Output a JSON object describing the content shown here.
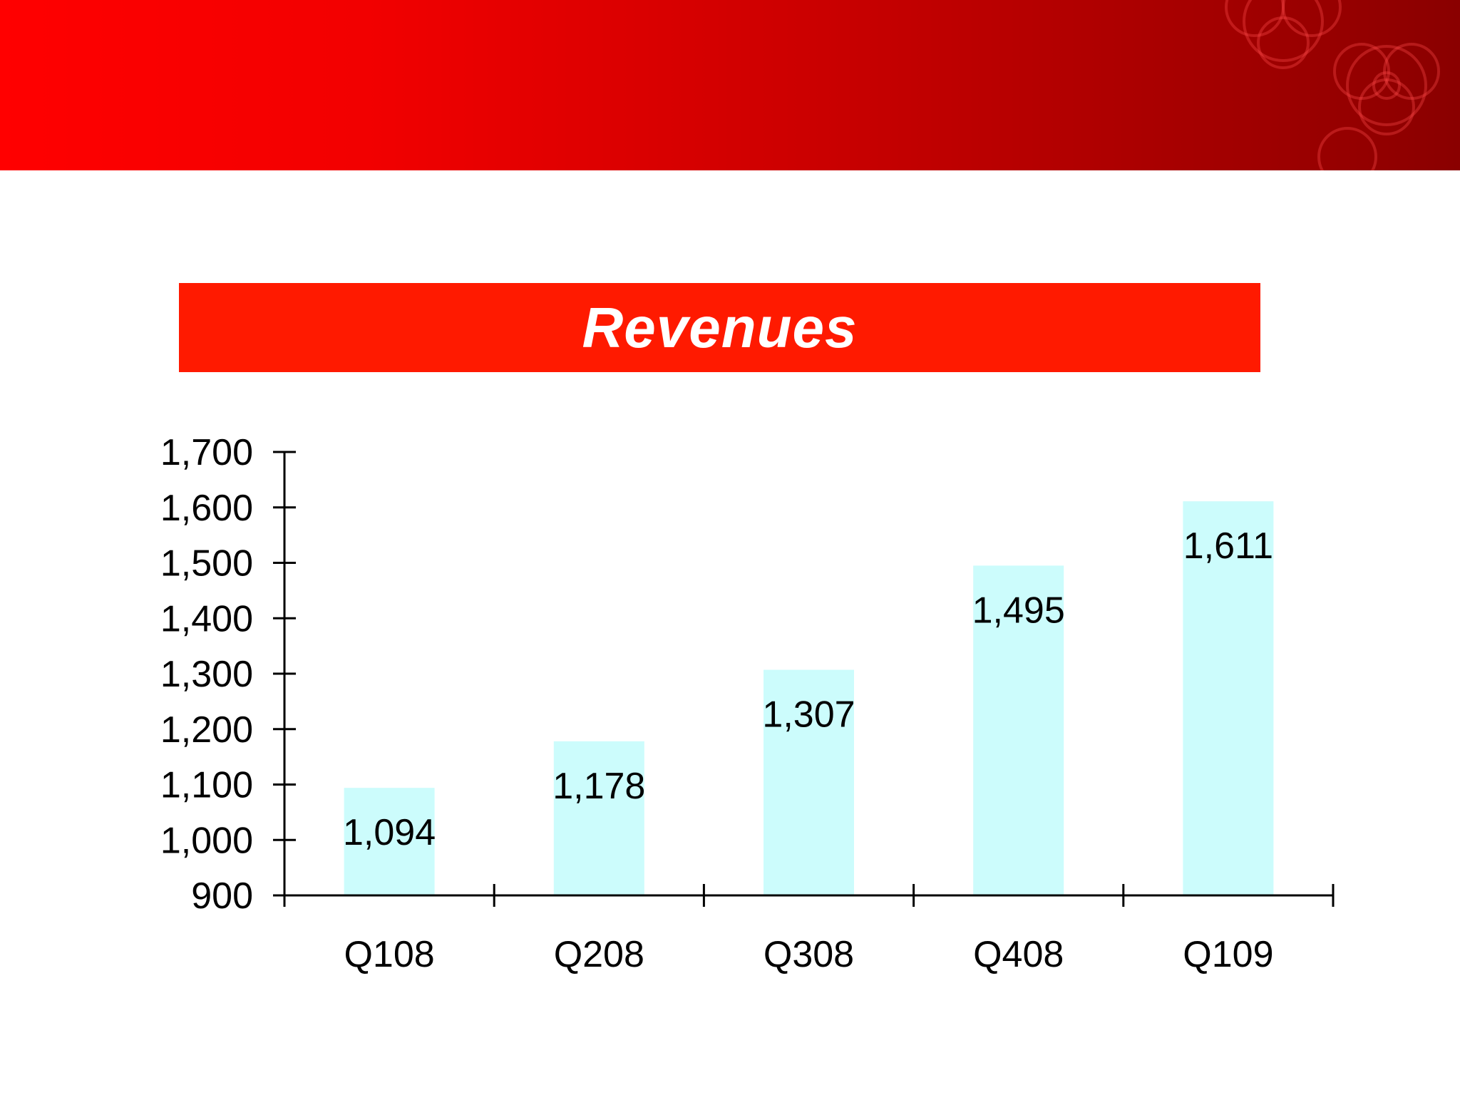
{
  "colors": {
    "header": "#d40000",
    "banner": "#ff1a00",
    "bar": "#ccfcfc",
    "axis": "#000000"
  },
  "chart_data": {
    "type": "bar",
    "title": "Revenues",
    "categories": [
      "Q108",
      "Q208",
      "Q308",
      "Q408",
      "Q109"
    ],
    "values": [
      1094,
      1178,
      1307,
      1495,
      1611
    ],
    "data_labels": [
      "1,094",
      "1,178",
      "1,307",
      "1,495",
      "1,611"
    ],
    "ylim": [
      900,
      1700
    ],
    "yticks": [
      900,
      1000,
      1100,
      1200,
      1300,
      1400,
      1500,
      1600,
      1700
    ],
    "ytick_labels": [
      "900",
      "1,000",
      "1,100",
      "1,200",
      "1,300",
      "1,400",
      "1,500",
      "1,600",
      "1,700"
    ],
    "grid": false,
    "legend": "none"
  }
}
